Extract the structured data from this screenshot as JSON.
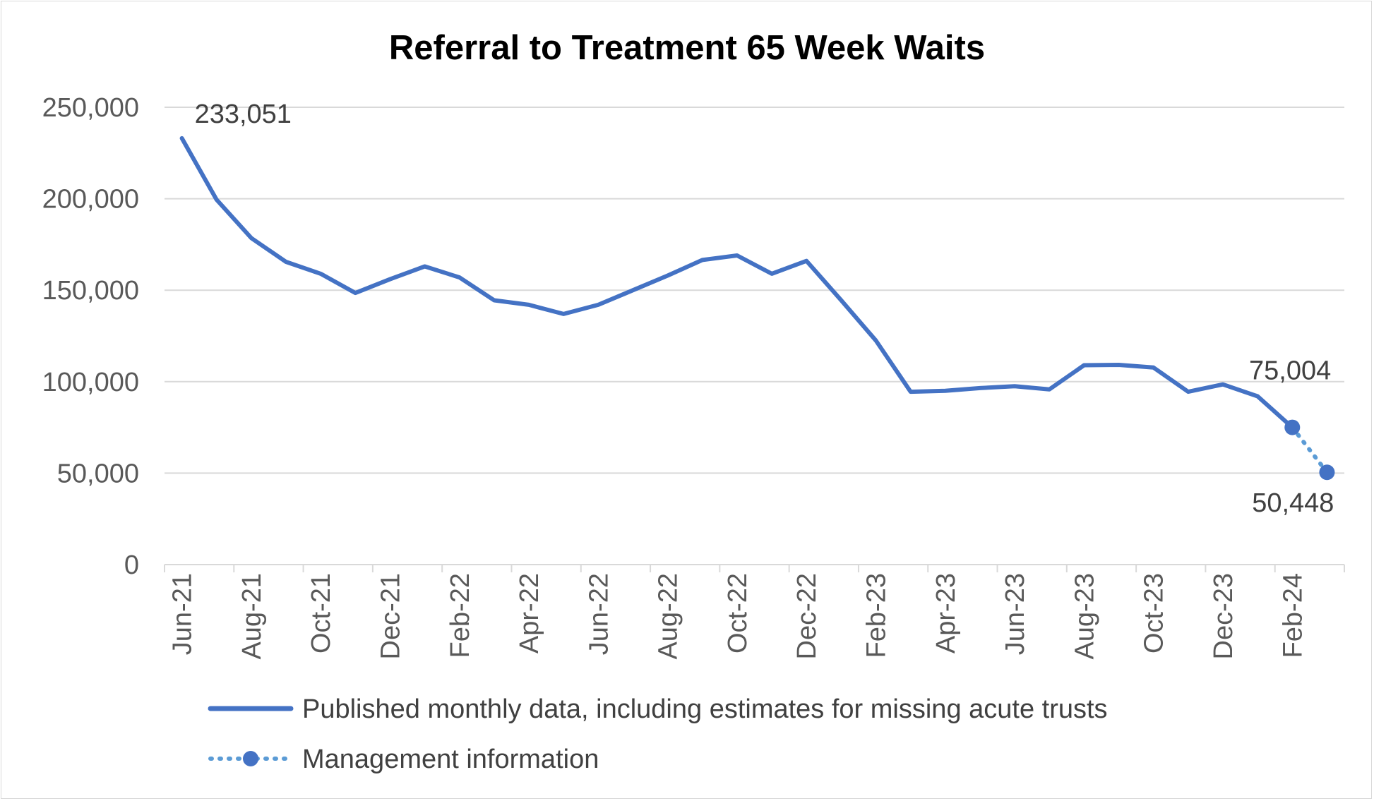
{
  "chart_data": {
    "type": "line",
    "title": "Referral to Treatment 65 Week Waits",
    "xlabel": "",
    "ylabel": "",
    "ylim": [
      0,
      250000
    ],
    "y_ticks": [
      0,
      50000,
      100000,
      150000,
      200000,
      250000
    ],
    "y_tick_labels": [
      "0",
      "50,000",
      "100,000",
      "150,000",
      "200,000",
      "250,000"
    ],
    "grid": "horizontal",
    "categories": [
      "Jun-21",
      "Jul-21",
      "Aug-21",
      "Sep-21",
      "Oct-21",
      "Nov-21",
      "Dec-21",
      "Jan-22",
      "Feb-22",
      "Mar-22",
      "Apr-22",
      "May-22",
      "Jun-22",
      "Jul-22",
      "Aug-22",
      "Sep-22",
      "Oct-22",
      "Nov-22",
      "Dec-22",
      "Jan-23",
      "Feb-23",
      "Mar-23",
      "Apr-23",
      "May-23",
      "Jun-23",
      "Jul-23",
      "Aug-23",
      "Sep-23",
      "Oct-23",
      "Nov-23",
      "Dec-23",
      "Jan-24",
      "Feb-24",
      "Mar-24"
    ],
    "x_tick_labels": [
      "Jun-21",
      "Aug-21",
      "Oct-21",
      "Dec-21",
      "Feb-22",
      "Apr-22",
      "Jun-22",
      "Aug-22",
      "Oct-22",
      "Dec-22",
      "Feb-23",
      "Apr-23",
      "Jun-23",
      "Aug-23",
      "Oct-23",
      "Dec-23",
      "Feb-24"
    ],
    "series": [
      {
        "name": "Published monthly data, including estimates for missing acute trusts",
        "style": "solid",
        "color": "#4472c4",
        "values": [
          233051,
          199500,
          178500,
          165500,
          159000,
          148500,
          156000,
          163000,
          157000,
          144500,
          142000,
          137000,
          142000,
          150000,
          158000,
          166500,
          169000,
          159000,
          166000,
          144500,
          122500,
          94500,
          95000,
          96500,
          97500,
          95800,
          109000,
          109200,
          107700,
          94500,
          98500,
          92000,
          75004,
          null
        ]
      },
      {
        "name": "Management information",
        "style": "dotted",
        "color": "#5b9bd5",
        "values": [
          null,
          null,
          null,
          null,
          null,
          null,
          null,
          null,
          null,
          null,
          null,
          null,
          null,
          null,
          null,
          null,
          null,
          null,
          null,
          null,
          null,
          null,
          null,
          null,
          null,
          null,
          null,
          null,
          null,
          null,
          null,
          null,
          75004,
          50448
        ]
      }
    ],
    "data_labels": [
      {
        "index": 0,
        "text": "233,051"
      },
      {
        "index": 32,
        "text": "75,004"
      },
      {
        "index": 33,
        "text": "50,448"
      }
    ],
    "legend": "bottom"
  }
}
